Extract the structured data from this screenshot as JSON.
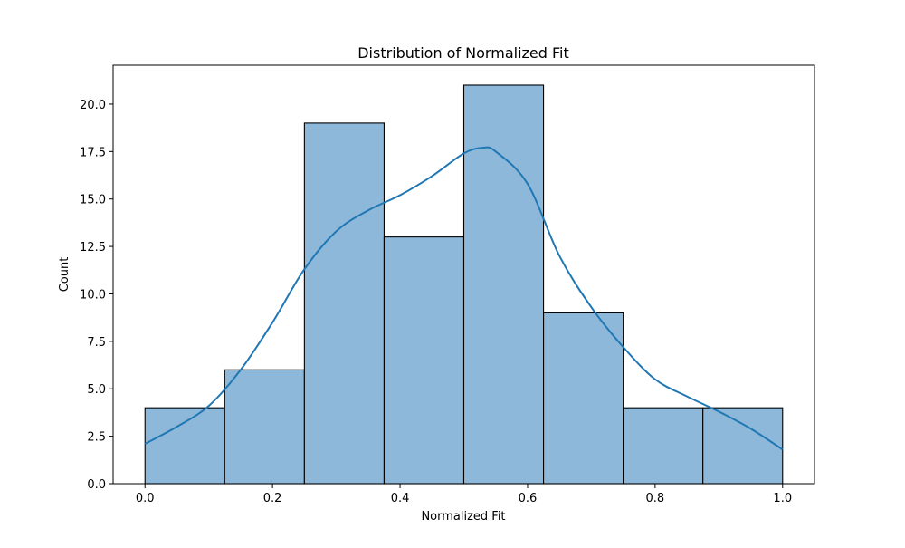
{
  "chart_data": {
    "type": "bar",
    "subtype": "histogram_with_kde",
    "title": "Distribution of Normalized Fit",
    "xlabel": "Normalized Fit",
    "ylabel": "Count",
    "xlim": [
      -0.05,
      1.05
    ],
    "ylim": [
      0,
      22.05
    ],
    "bin_edges": [
      0.0,
      0.125,
      0.25,
      0.375,
      0.5,
      0.625,
      0.75,
      0.875,
      1.0
    ],
    "values": [
      4,
      6,
      19,
      13,
      21,
      9,
      4,
      4
    ],
    "x_ticks": [
      0.0,
      0.2,
      0.4,
      0.6,
      0.8,
      1.0
    ],
    "x_tick_labels": [
      "0.0",
      "0.2",
      "0.4",
      "0.6",
      "0.8",
      "1.0"
    ],
    "y_ticks": [
      0.0,
      2.5,
      5.0,
      7.5,
      10.0,
      12.5,
      15.0,
      17.5,
      20.0
    ],
    "y_tick_labels": [
      "0.0",
      "2.5",
      "5.0",
      "7.5",
      "10.0",
      "12.5",
      "15.0",
      "17.5",
      "20.0"
    ],
    "kde": {
      "x": [
        0.0,
        0.05,
        0.1,
        0.15,
        0.2,
        0.25,
        0.3,
        0.35,
        0.4,
        0.45,
        0.5,
        0.53,
        0.55,
        0.6,
        0.65,
        0.7,
        0.75,
        0.8,
        0.85,
        0.9,
        0.95,
        1.0
      ],
      "y": [
        2.1,
        3.0,
        4.1,
        6.0,
        8.5,
        11.3,
        13.3,
        14.4,
        15.2,
        16.2,
        17.4,
        17.7,
        17.5,
        15.8,
        12.0,
        9.3,
        7.2,
        5.5,
        4.6,
        3.8,
        2.9,
        1.8
      ]
    },
    "grid": false,
    "colors": {
      "bar_fill": "#8db8d9",
      "bar_edge": "#000000",
      "kde_line": "#1f77b4"
    }
  }
}
